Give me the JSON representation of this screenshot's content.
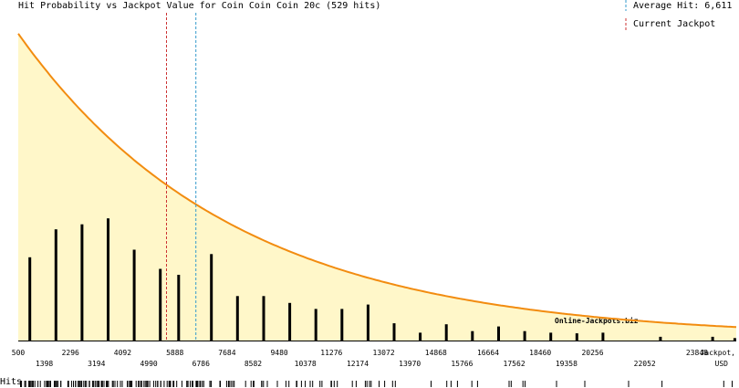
{
  "title": "Hit Probability vs Jackpot Value for Coin Coin Coin 20c (529 hits)",
  "legend": {
    "average_label": "Average Hit: 6,611",
    "current_label": "Current Jackpot"
  },
  "watermark": "Online-Jackpots.biz",
  "hits_label": "Hits",
  "colors": {
    "curve": "#f28c10",
    "fill": "#fff7c9",
    "bars": "#000000",
    "average_line": "#3399cc",
    "current_line": "#cc3333"
  },
  "chart_data": {
    "type": "bar",
    "xlabel": "Jackpot, USD",
    "xlabel_line1": "Jackpot,",
    "xlabel_line2": "USD",
    "xlim": [
      500,
      25200
    ],
    "ticks_top": [
      "500",
      "2296",
      "4092",
      "5888",
      "7684",
      "9480",
      "11276",
      "13072",
      "14868",
      "16664",
      "18460",
      "20256",
      "23848"
    ],
    "ticks_bottom": [
      "1398",
      "3194",
      "4990",
      "6786",
      "8582",
      "10378",
      "12174",
      "13970",
      "15766",
      "17562",
      "19358",
      "22052"
    ],
    "tick_top_values": [
      500,
      2296,
      4092,
      5888,
      7684,
      9480,
      11276,
      13072,
      14868,
      16664,
      18460,
      20256,
      23848
    ],
    "tick_bottom_values": [
      1398,
      3194,
      4990,
      6786,
      8582,
      10378,
      12174,
      13970,
      15766,
      17562,
      19358,
      22052
    ],
    "average_hit": 6611,
    "current_jackpot": 5600,
    "ylim": [
      0,
      100
    ],
    "bars": [
      {
        "x": 898,
        "y": 26.6
      },
      {
        "x": 1796,
        "y": 35.5
      },
      {
        "x": 2694,
        "y": 37.1
      },
      {
        "x": 3592,
        "y": 39.0
      },
      {
        "x": 4490,
        "y": 29.0
      },
      {
        "x": 5388,
        "y": 22.9
      },
      {
        "x": 6017,
        "y": 21.0
      },
      {
        "x": 7145,
        "y": 27.6
      },
      {
        "x": 8043,
        "y": 14.2
      },
      {
        "x": 8941,
        "y": 14.2
      },
      {
        "x": 9839,
        "y": 12.0
      },
      {
        "x": 10737,
        "y": 10.1
      },
      {
        "x": 11635,
        "y": 10.1
      },
      {
        "x": 12533,
        "y": 11.5
      },
      {
        "x": 13431,
        "y": 5.5
      },
      {
        "x": 14329,
        "y": 2.5
      },
      {
        "x": 15227,
        "y": 5.2
      },
      {
        "x": 16125,
        "y": 3.0
      },
      {
        "x": 17023,
        "y": 4.5
      },
      {
        "x": 17921,
        "y": 3.0
      },
      {
        "x": 18819,
        "y": 2.5
      },
      {
        "x": 19717,
        "y": 2.3
      },
      {
        "x": 20615,
        "y": 2.5
      },
      {
        "x": 22591,
        "y": 1.2
      },
      {
        "x": 24387,
        "y": 1.2
      },
      {
        "x": 25150,
        "y": 0.8
      }
    ],
    "curve": {
      "type": "exponential_decay",
      "y0": 98,
      "decay_per_1000usd": 0.1346,
      "floor": 0.8
    }
  }
}
